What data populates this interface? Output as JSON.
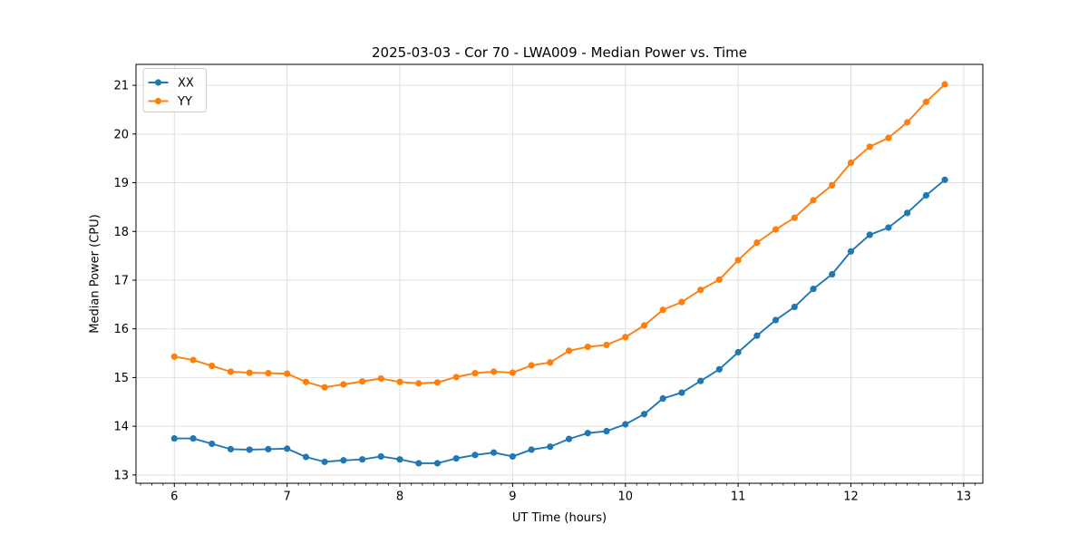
{
  "chart_data": {
    "type": "line",
    "title": "2025-03-03 - Cor 70 - LWA009 - Median Power vs. Time",
    "xlabel": "UT Time (hours)",
    "ylabel": "Median Power (CPU)",
    "xlim": [
      5.66,
      13.17
    ],
    "ylim": [
      12.83,
      21.43
    ],
    "xticks": [
      6,
      7,
      8,
      9,
      10,
      11,
      12,
      13
    ],
    "yticks": [
      13,
      14,
      15,
      16,
      17,
      18,
      19,
      20,
      21
    ],
    "x_minor_tick_step": 0.1,
    "grid": true,
    "legend_position": "upper-left",
    "x": [
      6.0,
      6.167,
      6.333,
      6.5,
      6.667,
      6.833,
      7.0,
      7.167,
      7.333,
      7.5,
      7.667,
      7.833,
      8.0,
      8.167,
      8.333,
      8.5,
      8.667,
      8.833,
      9.0,
      9.167,
      9.333,
      9.5,
      9.667,
      9.833,
      10.0,
      10.167,
      10.333,
      10.5,
      10.667,
      10.833,
      11.0,
      11.167,
      11.333,
      11.5,
      11.667,
      11.833,
      12.0,
      12.167,
      12.333,
      12.5,
      12.667,
      12.833
    ],
    "series": [
      {
        "name": "XX",
        "color": "#1f77b4",
        "values": [
          13.75,
          13.75,
          13.64,
          13.53,
          13.52,
          13.53,
          13.54,
          13.37,
          13.27,
          13.3,
          13.32,
          13.38,
          13.32,
          13.24,
          13.24,
          13.34,
          13.41,
          13.46,
          13.38,
          13.52,
          13.58,
          13.74,
          13.86,
          13.9,
          14.04,
          14.25,
          14.57,
          14.69,
          14.93,
          15.17,
          15.52,
          15.86,
          16.18,
          16.45,
          16.82,
          17.12,
          17.59,
          17.93,
          18.08,
          18.38,
          18.74,
          19.06
        ]
      },
      {
        "name": "YY",
        "color": "#ff7f0e",
        "values": [
          15.43,
          15.36,
          15.24,
          15.12,
          15.1,
          15.09,
          15.08,
          14.91,
          14.8,
          14.86,
          14.92,
          14.98,
          14.91,
          14.88,
          14.9,
          15.01,
          15.09,
          15.12,
          15.1,
          15.25,
          15.31,
          15.55,
          15.63,
          15.67,
          15.83,
          16.07,
          16.39,
          16.55,
          16.8,
          17.01,
          17.41,
          17.77,
          18.04,
          18.28,
          18.64,
          18.95,
          19.41,
          19.74,
          19.92,
          20.24,
          20.66,
          21.02
        ]
      }
    ],
    "style": {
      "grid_color": "#e0e0e0",
      "spine_color": "#000000",
      "legend_border_color": "#cccccc",
      "background": "#ffffff"
    }
  }
}
